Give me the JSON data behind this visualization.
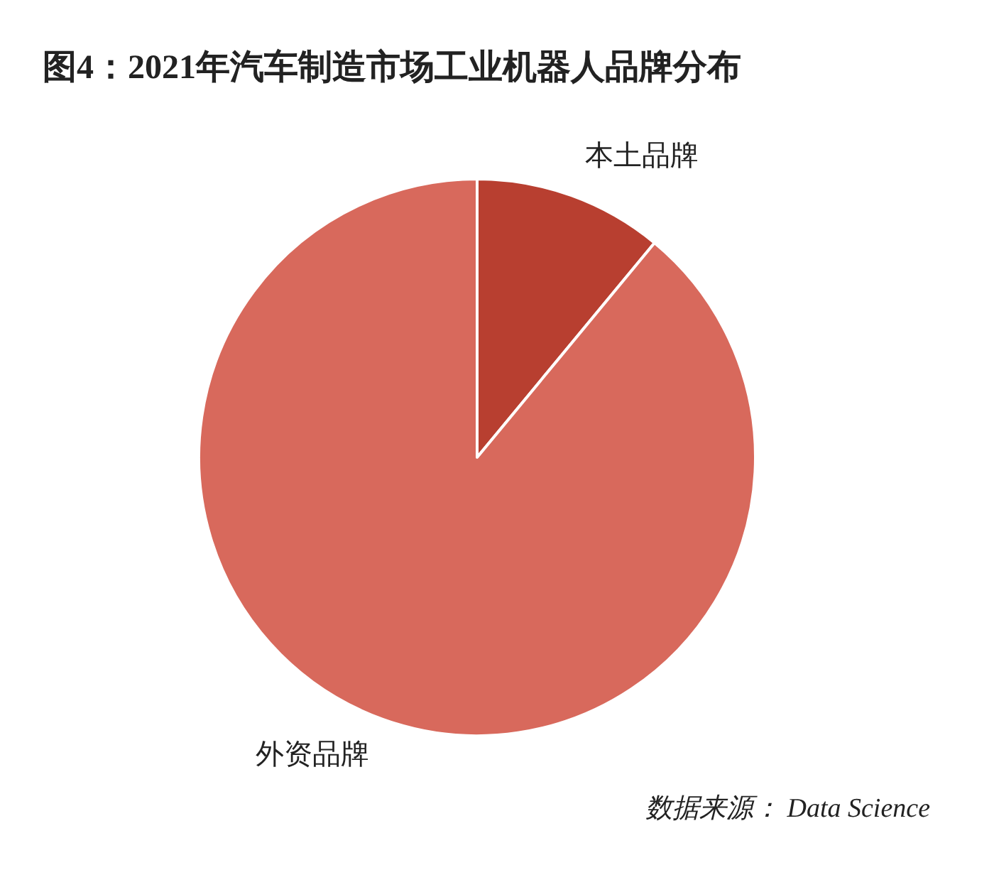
{
  "chart_data": {
    "type": "pie",
    "title": "图4：2021年汽车制造市场工业机器人品牌分布",
    "categories": [
      "本土品牌",
      "外资品牌"
    ],
    "values": [
      11,
      89
    ],
    "colors": [
      "#b83f30",
      "#d8695c"
    ],
    "annotations": [
      "数据来源： Data Science"
    ]
  }
}
